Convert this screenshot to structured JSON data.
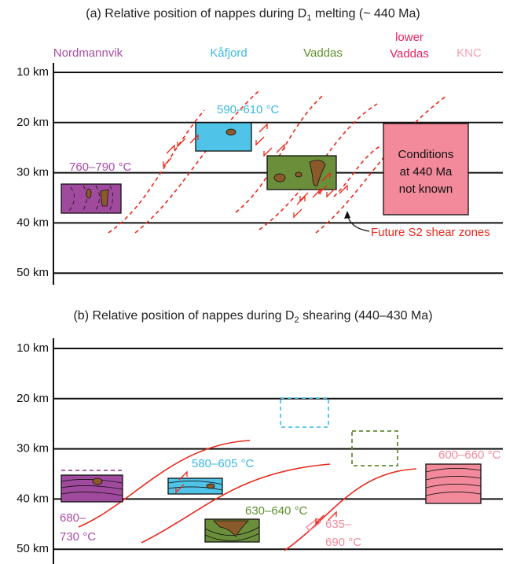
{
  "panel_a": {
    "title_parts": [
      "(a) Relative position of nappes during D",
      "1",
      " melting (~ 440 Ma)"
    ],
    "nappe_labels": {
      "nordmannvik": "Nordmannvik",
      "kafjord": "Kåfjord",
      "vaddas": "Vaddas",
      "lower_vaddas": [
        "lower",
        "Vaddas"
      ],
      "knc": "KNC"
    },
    "depths": [
      "10 km",
      "20 km",
      "30 km",
      "40 km",
      "50 km"
    ],
    "temperatures": [
      "760–790 °C",
      "590–610 °C"
    ],
    "knc_box": [
      "Conditions",
      "at 440 Ma",
      "not known"
    ],
    "annotation": "Future S2 shear zones"
  },
  "panel_b": {
    "title_parts": [
      "(b) Relative position of nappes during D",
      "2",
      " shearing (440–430 Ma)"
    ],
    "depths": [
      "10 km",
      "20 km",
      "30 km",
      "40 km",
      "50 km"
    ],
    "temperatures": [
      "680–",
      "730 °C",
      "580–605 °C",
      "630–640 °C",
      "635–",
      "690 °C",
      "600–660 °C"
    ]
  }
}
